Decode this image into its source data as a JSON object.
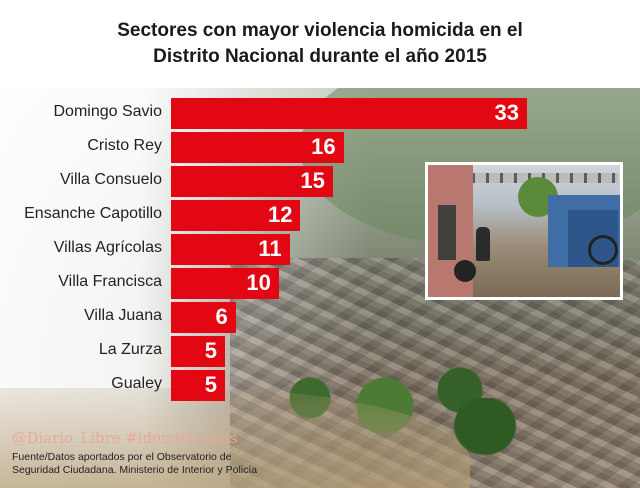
{
  "title_line1": "Sectores con mayor violencia homicida en el",
  "title_line2": "Distrito Nacional durante el año 2015",
  "handle": "@Diario_Libre #idominicanas",
  "source_line1": "Fuente/Datos aportados por el Observatorio de",
  "source_line2": "Seguridad Ciudadana. Ministerio de Interior y Policía",
  "colors": {
    "bar": "#e30613",
    "value_text": "#ffffff",
    "handle": "#e8a89a"
  },
  "chart_data": {
    "type": "bar",
    "orientation": "horizontal",
    "title": "Sectores con mayor violencia homicida en el Distrito Nacional durante el año 2015",
    "categories": [
      "Domingo Savio",
      "Cristo Rey",
      "Villa Consuelo",
      "Ensanche Capotillo",
      "Villas Agrícolas",
      "Villa Francisca",
      "Villa Juana",
      "La Zurza",
      "Gualey"
    ],
    "values": [
      33,
      16,
      15,
      12,
      11,
      10,
      6,
      5,
      5
    ],
    "labels": [
      "33",
      "16",
      "15",
      "12",
      "11",
      "10",
      "6",
      "5",
      "5"
    ],
    "xlim": [
      0,
      33
    ],
    "grid": false,
    "legend": "none"
  }
}
